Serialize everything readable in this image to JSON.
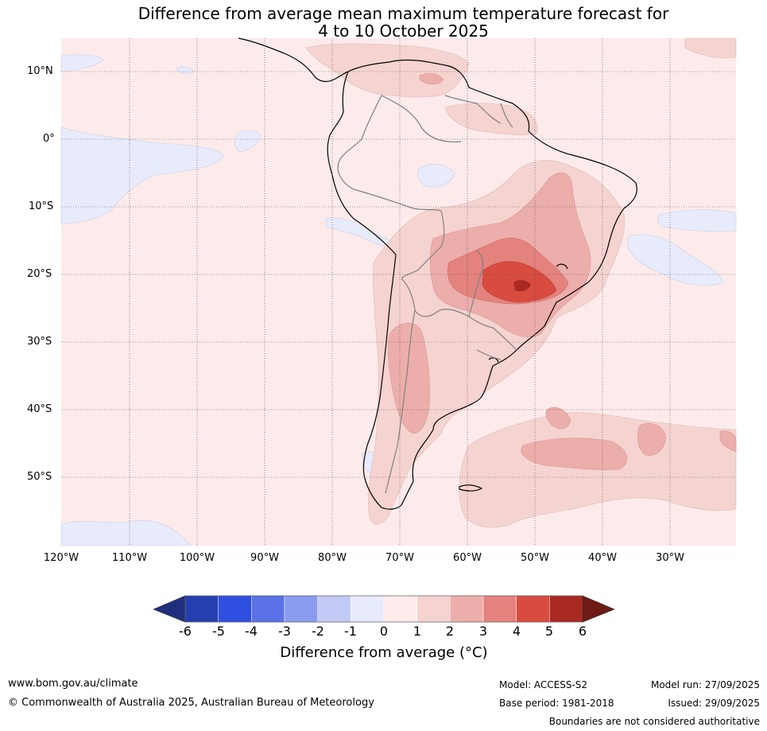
{
  "title": {
    "line1": "Difference from average mean maximum temperature forecast for",
    "line2": "4 to 10 October 2025"
  },
  "map": {
    "lat_labels": [
      "10°N",
      "0°",
      "10°S",
      "20°S",
      "30°S",
      "40°S",
      "50°S"
    ],
    "lon_labels": [
      "120°W",
      "110°W",
      "100°W",
      "90°W",
      "80°W",
      "70°W",
      "60°W",
      "50°W",
      "40°W",
      "30°W"
    ],
    "region": "South America"
  },
  "colorbar": {
    "ticks": [
      "-6",
      "-5",
      "-4",
      "-3",
      "-2",
      "-1",
      "0",
      "1",
      "2",
      "3",
      "4",
      "5",
      "6"
    ],
    "colors": [
      "#1e2f7e",
      "#263fb0",
      "#2f4fe0",
      "#5a72e6",
      "#8a9bee",
      "#c2c9f4",
      "#e8ebfb",
      "#fcebea",
      "#f5d3d1",
      "#ecaeab",
      "#e4827e",
      "#d84c40",
      "#a82a22",
      "#6e1a15"
    ],
    "label": "Difference from average (°C)"
  },
  "footer": {
    "website": "www.bom.gov.au/climate",
    "copyright": "© Commonwealth of Australia 2025, Australian Bureau of Meteorology",
    "model": "Model: ACCESS-S2",
    "base_period": "Base period: 1981-2018",
    "model_run": "Model run: 27/09/2025",
    "issued": "Issued: 29/09/2025",
    "disclaimer": "Boundaries are not considered authoritative"
  }
}
